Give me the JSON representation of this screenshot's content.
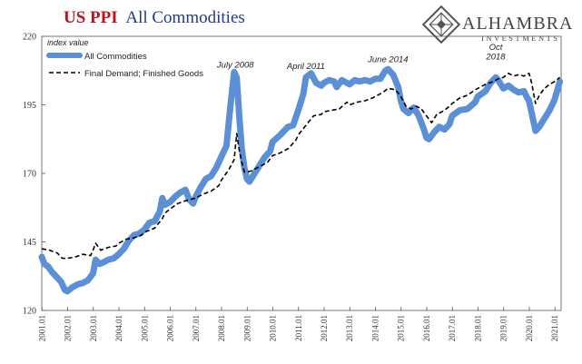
{
  "title": {
    "part1": "US PPI",
    "part2": "All Commodities"
  },
  "logo": {
    "name": "ALHAMBRA",
    "sub": "INVESTMENTS"
  },
  "colors": {
    "all_commodities": "#5b8fd6",
    "final_demand": "#000000",
    "title_red": "#c0121b",
    "title_blue": "#1f3b8a"
  },
  "chart_data": {
    "type": "line",
    "y_axis_label": "index value",
    "ylim": [
      120,
      220
    ],
    "y_ticks": [
      120,
      145,
      170,
      195,
      220
    ],
    "xlim": [
      2001.0,
      2021.25
    ],
    "x_tick_labels": [
      "2001.01",
      "2002.01",
      "2003.01",
      "2004.01",
      "2005.01",
      "2006.01",
      "2007.01",
      "2008.01",
      "2009.01",
      "2010.01",
      "2011.01",
      "2012.01",
      "2013.01",
      "2014.01",
      "2015.01",
      "2016.01",
      "2017.01",
      "2018.01",
      "2019.01",
      "2020.01",
      "2021.01"
    ],
    "legend": {
      "position": "top-left"
    },
    "grid": false,
    "series": [
      {
        "name": "All Commodities",
        "style": "thick-solid",
        "points": [
          [
            2001.0,
            139.5
          ],
          [
            2001.1,
            137.0
          ],
          [
            2001.25,
            136.0
          ],
          [
            2001.4,
            134.0
          ],
          [
            2001.6,
            132.0
          ],
          [
            2001.75,
            130.5
          ],
          [
            2001.9,
            127.5
          ],
          [
            2002.0,
            127.0
          ],
          [
            2002.2,
            128.5
          ],
          [
            2002.4,
            129.5
          ],
          [
            2002.6,
            130.0
          ],
          [
            2002.8,
            131.0
          ],
          [
            2003.0,
            133.5
          ],
          [
            2003.1,
            138.5
          ],
          [
            2003.25,
            137.0
          ],
          [
            2003.4,
            137.5
          ],
          [
            2003.6,
            138.5
          ],
          [
            2003.8,
            139.0
          ],
          [
            2004.0,
            140.5
          ],
          [
            2004.2,
            142.5
          ],
          [
            2004.4,
            145.5
          ],
          [
            2004.6,
            147.5
          ],
          [
            2004.8,
            148.0
          ],
          [
            2005.0,
            149.5
          ],
          [
            2005.2,
            152.0
          ],
          [
            2005.4,
            152.5
          ],
          [
            2005.6,
            156.0
          ],
          [
            2005.7,
            161.0
          ],
          [
            2005.8,
            158.5
          ],
          [
            2006.0,
            159.5
          ],
          [
            2006.2,
            161.5
          ],
          [
            2006.4,
            163.0
          ],
          [
            2006.6,
            164.0
          ],
          [
            2006.75,
            160.5
          ],
          [
            2006.9,
            159.0
          ],
          [
            2007.0,
            161.5
          ],
          [
            2007.2,
            165.0
          ],
          [
            2007.4,
            168.0
          ],
          [
            2007.6,
            169.0
          ],
          [
            2007.8,
            172.0
          ],
          [
            2008.0,
            176.0
          ],
          [
            2008.2,
            180.0
          ],
          [
            2008.35,
            194.0
          ],
          [
            2008.5,
            207.0
          ],
          [
            2008.6,
            205.0
          ],
          [
            2008.7,
            191.0
          ],
          [
            2008.8,
            179.0
          ],
          [
            2008.9,
            172.0
          ],
          [
            2009.0,
            168.0
          ],
          [
            2009.1,
            167.0
          ],
          [
            2009.3,
            170.0
          ],
          [
            2009.5,
            173.0
          ],
          [
            2009.7,
            176.0
          ],
          [
            2009.9,
            178.0
          ],
          [
            2010.0,
            181.5
          ],
          [
            2010.3,
            184.0
          ],
          [
            2010.6,
            187.0
          ],
          [
            2010.8,
            187.5
          ],
          [
            2011.0,
            193.0
          ],
          [
            2011.2,
            199.0
          ],
          [
            2011.3,
            205.0
          ],
          [
            2011.5,
            206.5
          ],
          [
            2011.7,
            203.0
          ],
          [
            2011.9,
            202.0
          ],
          [
            2012.0,
            203.0
          ],
          [
            2012.2,
            204.0
          ],
          [
            2012.4,
            203.5
          ],
          [
            2012.5,
            201.5
          ],
          [
            2012.7,
            204.0
          ],
          [
            2012.9,
            203.0
          ],
          [
            2013.0,
            202.5
          ],
          [
            2013.2,
            204.0
          ],
          [
            2013.4,
            203.5
          ],
          [
            2013.6,
            204.0
          ],
          [
            2013.8,
            203.5
          ],
          [
            2014.0,
            204.5
          ],
          [
            2014.2,
            204.5
          ],
          [
            2014.4,
            207.5
          ],
          [
            2014.5,
            208.0
          ],
          [
            2014.7,
            206.0
          ],
          [
            2014.9,
            201.5
          ],
          [
            2015.0,
            196.5
          ],
          [
            2015.1,
            193.5
          ],
          [
            2015.3,
            192.0
          ],
          [
            2015.5,
            194.0
          ],
          [
            2015.7,
            191.0
          ],
          [
            2015.9,
            186.0
          ],
          [
            2016.0,
            183.0
          ],
          [
            2016.1,
            182.5
          ],
          [
            2016.3,
            185.0
          ],
          [
            2016.5,
            187.0
          ],
          [
            2016.7,
            186.0
          ],
          [
            2016.9,
            188.0
          ],
          [
            2017.0,
            191.0
          ],
          [
            2017.3,
            193.0
          ],
          [
            2017.6,
            193.5
          ],
          [
            2017.9,
            196.0
          ],
          [
            2018.0,
            198.0
          ],
          [
            2018.3,
            200.0
          ],
          [
            2018.5,
            203.0
          ],
          [
            2018.7,
            205.0
          ],
          [
            2018.8,
            204.0
          ],
          [
            2019.0,
            201.0
          ],
          [
            2019.2,
            202.0
          ],
          [
            2019.4,
            200.5
          ],
          [
            2019.6,
            199.5
          ],
          [
            2019.8,
            200.0
          ],
          [
            2019.9,
            198.0
          ],
          [
            2020.0,
            196.5
          ],
          [
            2020.15,
            190.0
          ],
          [
            2020.25,
            185.5
          ],
          [
            2020.4,
            187.0
          ],
          [
            2020.6,
            190.0
          ],
          [
            2020.8,
            193.0
          ],
          [
            2021.0,
            197.0
          ],
          [
            2021.2,
            203.5
          ]
        ]
      },
      {
        "name": "Final Demand; Finished Goods",
        "style": "dashed",
        "points": [
          [
            2001.0,
            142.5
          ],
          [
            2001.3,
            142.0
          ],
          [
            2001.6,
            141.0
          ],
          [
            2001.8,
            139.0
          ],
          [
            2002.0,
            139.0
          ],
          [
            2002.3,
            139.5
          ],
          [
            2002.6,
            140.5
          ],
          [
            2002.9,
            140.0
          ],
          [
            2003.0,
            142.0
          ],
          [
            2003.1,
            144.5
          ],
          [
            2003.3,
            142.0
          ],
          [
            2003.6,
            143.0
          ],
          [
            2003.9,
            143.5
          ],
          [
            2004.0,
            144.5
          ],
          [
            2004.3,
            146.0
          ],
          [
            2004.6,
            146.5
          ],
          [
            2004.9,
            147.5
          ],
          [
            2005.0,
            148.5
          ],
          [
            2005.4,
            150.0
          ],
          [
            2005.7,
            153.5
          ],
          [
            2005.8,
            155.5
          ],
          [
            2006.0,
            157.0
          ],
          [
            2006.3,
            159.0
          ],
          [
            2006.6,
            160.0
          ],
          [
            2006.8,
            160.5
          ],
          [
            2007.0,
            161.0
          ],
          [
            2007.3,
            162.5
          ],
          [
            2007.6,
            163.5
          ],
          [
            2007.9,
            165.5
          ],
          [
            2008.0,
            167.5
          ],
          [
            2008.3,
            171.5
          ],
          [
            2008.5,
            175.0
          ],
          [
            2008.6,
            184.5
          ],
          [
            2008.7,
            178.5
          ],
          [
            2008.8,
            174.0
          ],
          [
            2008.9,
            170.5
          ],
          [
            2009.0,
            170.5
          ],
          [
            2009.2,
            171.0
          ],
          [
            2009.5,
            172.5
          ],
          [
            2009.8,
            174.0
          ],
          [
            2010.0,
            176.5
          ],
          [
            2010.3,
            177.5
          ],
          [
            2010.6,
            179.0
          ],
          [
            2010.9,
            182.0
          ],
          [
            2011.0,
            184.0
          ],
          [
            2011.3,
            187.5
          ],
          [
            2011.6,
            191.0
          ],
          [
            2011.9,
            191.5
          ],
          [
            2012.0,
            192.5
          ],
          [
            2012.3,
            193.0
          ],
          [
            2012.6,
            193.5
          ],
          [
            2012.9,
            196.0
          ],
          [
            2013.0,
            195.0
          ],
          [
            2013.3,
            196.0
          ],
          [
            2013.6,
            196.5
          ],
          [
            2013.9,
            197.5
          ],
          [
            2014.0,
            198.0
          ],
          [
            2014.3,
            199.5
          ],
          [
            2014.5,
            201.0
          ],
          [
            2014.8,
            200.5
          ],
          [
            2015.0,
            198.0
          ],
          [
            2015.2,
            194.5
          ],
          [
            2015.4,
            193.5
          ],
          [
            2015.6,
            194.5
          ],
          [
            2015.8,
            193.5
          ],
          [
            2016.0,
            191.0
          ],
          [
            2016.2,
            188.5
          ],
          [
            2016.4,
            191.5
          ],
          [
            2016.7,
            193.0
          ],
          [
            2016.9,
            194.5
          ],
          [
            2017.0,
            195.5
          ],
          [
            2017.3,
            197.5
          ],
          [
            2017.6,
            198.5
          ],
          [
            2017.9,
            200.5
          ],
          [
            2018.0,
            201.0
          ],
          [
            2018.3,
            202.5
          ],
          [
            2018.6,
            203.5
          ],
          [
            2018.8,
            204.5
          ],
          [
            2019.0,
            205.0
          ],
          [
            2019.2,
            206.5
          ],
          [
            2019.4,
            205.5
          ],
          [
            2019.6,
            206.0
          ],
          [
            2019.8,
            205.5
          ],
          [
            2020.0,
            206.5
          ],
          [
            2020.1,
            203.0
          ],
          [
            2020.25,
            195.5
          ],
          [
            2020.4,
            198.5
          ],
          [
            2020.6,
            201.0
          ],
          [
            2020.8,
            202.5
          ],
          [
            2021.0,
            203.5
          ],
          [
            2021.2,
            205.0
          ]
        ]
      }
    ],
    "annotations": [
      {
        "text": "July 2008",
        "x": 2008.55,
        "y": 208.5
      },
      {
        "text": "April 2011",
        "x": 2011.3,
        "y": 208.0
      },
      {
        "text": "June 2014",
        "x": 2014.5,
        "y": 210.5
      },
      {
        "text": "Oct",
        "x": 2018.7,
        "y": 215.0
      },
      {
        "text": "2018",
        "x": 2018.7,
        "y": 211.5
      }
    ]
  }
}
